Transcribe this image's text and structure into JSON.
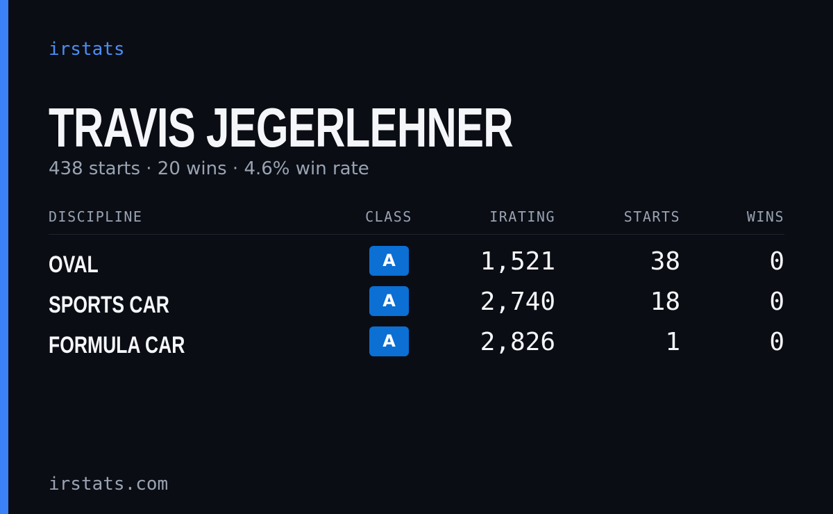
{
  "brand": "irstats",
  "header": {
    "name": "TRAVIS JEGERLEHNER",
    "summary": "438 starts · 20 wins · 4.6% win rate"
  },
  "table": {
    "columns": [
      "DISCIPLINE",
      "CLASS",
      "IRATING",
      "STARTS",
      "WINS"
    ],
    "rows": [
      [
        "OVAL",
        "A",
        "1,521",
        "38",
        "0"
      ],
      [
        "SPORTS CAR",
        "A",
        "2,740",
        "18",
        "0"
      ],
      [
        "FORMULA CAR",
        "A",
        "2,826",
        "1",
        "0"
      ]
    ]
  },
  "footer": "irstats.com"
}
